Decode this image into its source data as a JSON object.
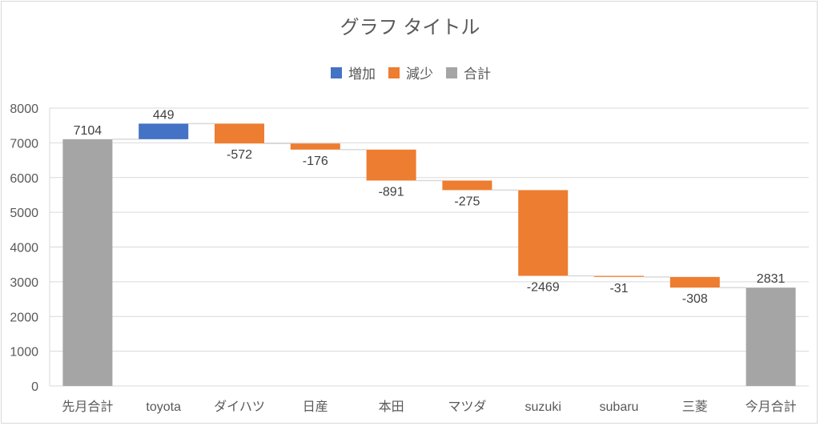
{
  "chart_data": {
    "type": "waterfall",
    "title": "グラフ タイトル",
    "legend": {
      "placement": "top",
      "entries": [
        {
          "label": "増加",
          "color": "#4472C4"
        },
        {
          "label": "減少",
          "color": "#ED7D31"
        },
        {
          "label": "合計",
          "color": "#A5A5A5"
        }
      ]
    },
    "ylim": [
      0,
      8000
    ],
    "yticks": [
      "0",
      "1000",
      "2000",
      "3000",
      "4000",
      "5000",
      "6000",
      "7000",
      "8000"
    ],
    "grid": true,
    "categories": [
      "先月合計",
      "toyota",
      "ダイハツ",
      "日産",
      "本田",
      "マツダ",
      "suzuki",
      "subaru",
      "三菱",
      "今月合計"
    ],
    "values": [
      7104,
      449,
      -572,
      -176,
      -891,
      -275,
      -2469,
      -31,
      -308,
      2831
    ],
    "kinds": [
      "total",
      "delta",
      "delta",
      "delta",
      "delta",
      "delta",
      "delta",
      "delta",
      "delta",
      "total"
    ],
    "labels": [
      "7104",
      "449",
      "-572",
      "-176",
      "-891",
      "-275",
      "-2469",
      "-31",
      "-308",
      "2831"
    ]
  }
}
